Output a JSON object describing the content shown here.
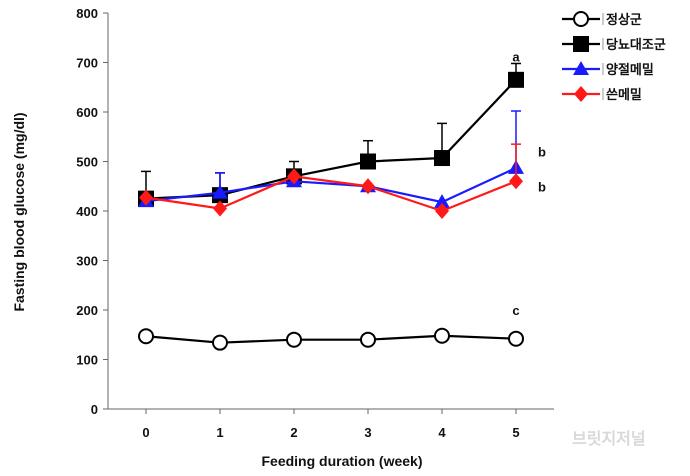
{
  "chart_data": {
    "type": "line",
    "xlabel": "Feeding duration (week)",
    "ylabel": "Fasting blood glucose (mg/dl)",
    "ylim": [
      0,
      800
    ],
    "yticks": [
      0,
      100,
      200,
      300,
      400,
      500,
      600,
      700,
      800
    ],
    "categories": [
      "0",
      "1",
      "2",
      "3",
      "4",
      "5"
    ],
    "series": [
      {
        "name": "정상군",
        "color": "#000000",
        "marker": "open-circle",
        "values": [
          147,
          134,
          140,
          140,
          148,
          142
        ],
        "errors": [
          0,
          0,
          0,
          0,
          0,
          0
        ]
      },
      {
        "name": "당뇨대조군",
        "color": "#000000",
        "marker": "filled-square",
        "values": [
          425,
          432,
          470,
          500,
          507,
          665
        ],
        "errors": [
          55,
          45,
          30,
          42,
          70,
          33
        ]
      },
      {
        "name": "양절메밀",
        "color": "#1a1aff",
        "marker": "filled-triangle",
        "values": [
          420,
          437,
          460,
          450,
          418,
          487
        ],
        "errors": [
          0,
          40,
          0,
          0,
          0,
          115
        ]
      },
      {
        "name": "쓴메밀",
        "color": "#ff1a1a",
        "marker": "filled-diamond",
        "values": [
          427,
          405,
          470,
          450,
          400,
          460
        ],
        "errors": [
          0,
          0,
          0,
          0,
          0,
          75
        ]
      }
    ],
    "annotations": [
      {
        "text": "a",
        "category": "5",
        "y": 712,
        "offset": "above"
      },
      {
        "text": "b",
        "category": "5",
        "y": 520,
        "offset": "right"
      },
      {
        "text": "b",
        "category": "5",
        "y": 450,
        "offset": "right"
      },
      {
        "text": "c",
        "category": "5",
        "y": 200,
        "offset": "above"
      }
    ],
    "legend": "right",
    "grid": false
  },
  "watermark": "브릿지저널"
}
